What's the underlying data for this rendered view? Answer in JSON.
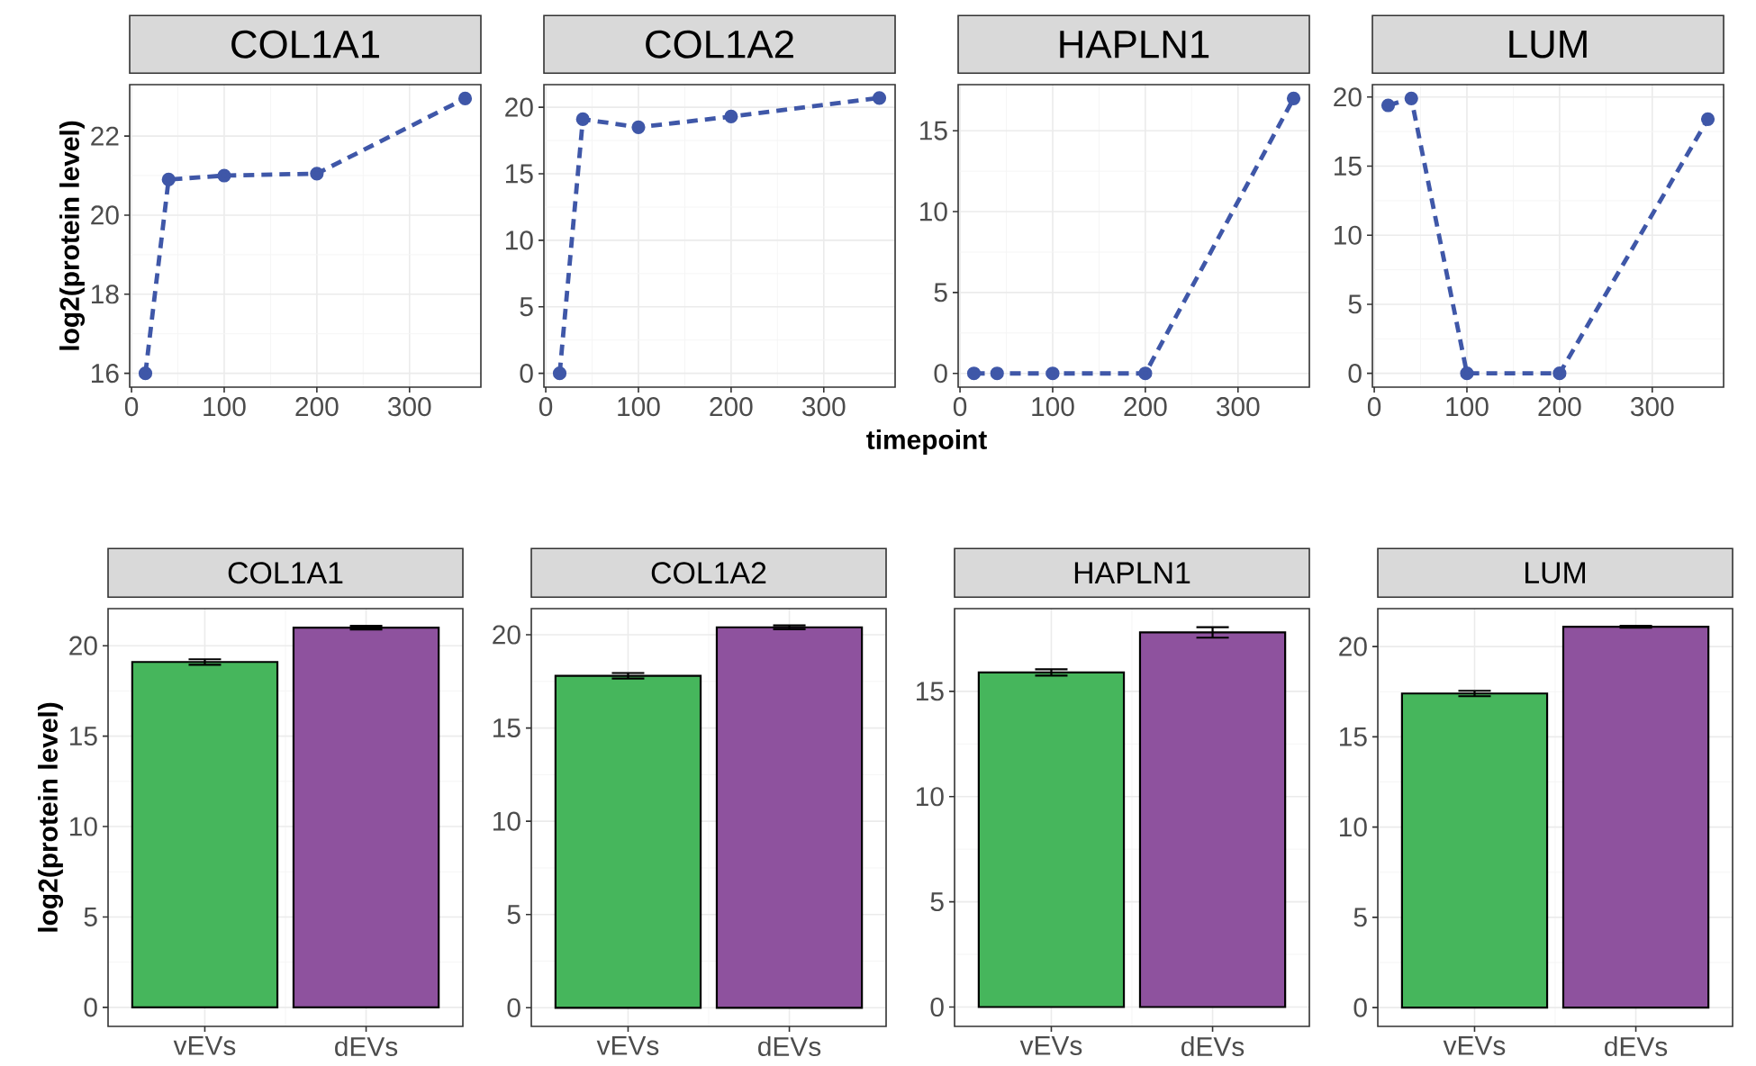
{
  "chart_data": [
    {
      "type": "line",
      "title": "COL1A1",
      "ylabel": "log2(protein level)",
      "x": [
        15,
        40,
        100,
        200,
        360
      ],
      "values": [
        16.0,
        20.9,
        21.0,
        21.05,
        22.95
      ],
      "color": "#3f57a8",
      "marker": "circle",
      "line_style": "dashed",
      "xlim": [
        -2,
        377
      ],
      "ylim": [
        15.65,
        23.3
      ],
      "xticks": [
        0,
        100,
        200,
        300
      ],
      "yticks": [
        16,
        18,
        20,
        22
      ],
      "grid": true
    },
    {
      "type": "line",
      "title": "COL1A2",
      "xlabel": "timepoint",
      "x": [
        15,
        40,
        100,
        200,
        360
      ],
      "values": [
        0,
        19.1,
        18.5,
        19.3,
        20.7
      ],
      "color": "#3f57a8",
      "marker": "circle",
      "line_style": "dashed",
      "xlim": [
        -2,
        377
      ],
      "ylim": [
        -1.04,
        21.7
      ],
      "xticks": [
        0,
        100,
        200,
        300
      ],
      "yticks": [
        0,
        5,
        10,
        15,
        20
      ],
      "grid": true
    },
    {
      "type": "line",
      "title": "HAPLN1",
      "x": [
        15,
        40,
        100,
        200,
        360
      ],
      "values": [
        0,
        0,
        0,
        0,
        17.0
      ],
      "color": "#3f57a8",
      "marker": "circle",
      "line_style": "dashed",
      "xlim": [
        -2,
        377
      ],
      "ylim": [
        -0.85,
        17.85
      ],
      "xticks": [
        0,
        100,
        200,
        300
      ],
      "yticks": [
        0,
        5,
        10,
        15
      ],
      "grid": true
    },
    {
      "type": "line",
      "title": "LUM",
      "x": [
        15,
        40,
        100,
        200,
        360
      ],
      "values": [
        19.4,
        19.9,
        0,
        0,
        18.4
      ],
      "color": "#3f57a8",
      "marker": "circle",
      "line_style": "dashed",
      "xlim": [
        -2,
        377
      ],
      "ylim": [
        -1.0,
        20.9
      ],
      "xticks": [
        0,
        100,
        200,
        300
      ],
      "yticks": [
        0,
        5,
        10,
        15,
        20
      ],
      "grid": true
    },
    {
      "type": "bar",
      "title": "COL1A1",
      "ylabel": "log2(protein level)",
      "categories": [
        "vEVs",
        "dEVs"
      ],
      "values": [
        19.1,
        21.0
      ],
      "errors": [
        0.15,
        0.1
      ],
      "colors": [
        "#46b65c",
        "#8e529e"
      ],
      "ylim": [
        -1.05,
        22.05
      ],
      "yticks": [
        0,
        5,
        10,
        15,
        20
      ],
      "grid": true
    },
    {
      "type": "bar",
      "title": "COL1A2",
      "categories": [
        "vEVs",
        "dEVs"
      ],
      "values": [
        17.8,
        20.4
      ],
      "errors": [
        0.15,
        0.1
      ],
      "colors": [
        "#46b65c",
        "#8e529e"
      ],
      "ylim": [
        -1.0,
        21.4
      ],
      "yticks": [
        0,
        5,
        10,
        15,
        20
      ],
      "grid": true
    },
    {
      "type": "bar",
      "title": "HAPLN1",
      "categories": [
        "vEVs",
        "dEVs"
      ],
      "values": [
        15.9,
        17.8
      ],
      "errors": [
        0.15,
        0.25
      ],
      "colors": [
        "#46b65c",
        "#8e529e"
      ],
      "ylim": [
        -0.92,
        18.93
      ],
      "yticks": [
        0,
        5,
        10,
        15
      ],
      "grid": true
    },
    {
      "type": "bar",
      "title": "LUM",
      "categories": [
        "vEVs",
        "dEVs"
      ],
      "values": [
        17.4,
        21.1
      ],
      "errors": [
        0.15,
        0.05
      ],
      "colors": [
        "#46b65c",
        "#8e529e"
      ],
      "ylim": [
        -1.04,
        22.1
      ],
      "yticks": [
        0,
        5,
        10,
        15,
        20
      ],
      "grid": true
    }
  ]
}
